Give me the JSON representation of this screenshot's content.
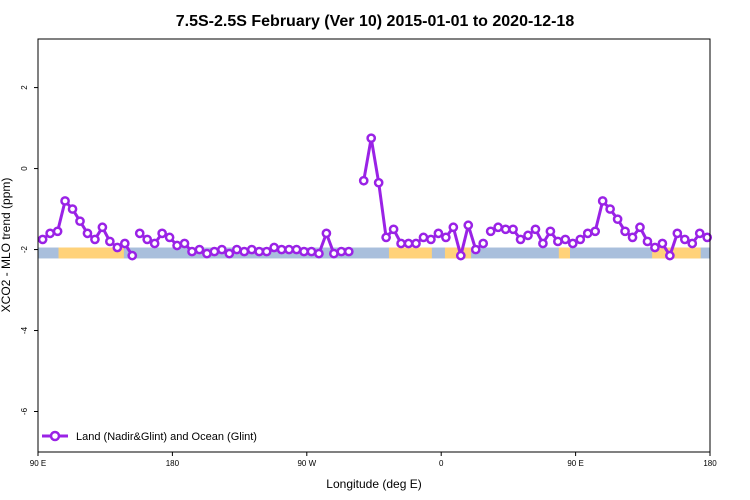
{
  "chart_data": {
    "type": "line",
    "title": "7.5S-2.5S February (Ver 10)   2015-01-01 to 2020-12-18",
    "xlabel": "Longitude (deg E)",
    "ylabel": "XCO2 - MLO trend (ppm)",
    "xlim": [
      90,
      450
    ],
    "ylim": [
      -7,
      3.2
    ],
    "x_ticks": [
      90,
      162,
      234,
      306,
      378,
      450
    ],
    "x_tick_labels": [
      "90 E",
      "180",
      "90 W",
      "0",
      "90 E",
      "180"
    ],
    "y_ticks": [
      -6,
      -4,
      -2,
      0,
      2
    ],
    "y_tick_labels": [
      "-6",
      "-4",
      "-2",
      "0",
      "2"
    ],
    "grid": false,
    "legend_position": "bottom-left",
    "colors": {
      "series": "#9a22e6",
      "land": "#ffd27a",
      "ocean": "#a9bfdc"
    },
    "surface_strip": {
      "y_range": [
        -2.22,
        -1.95
      ],
      "land_segments": [
        [
          101,
          136
        ],
        [
          278,
          301
        ],
        [
          308,
          322
        ],
        [
          369,
          375
        ],
        [
          419,
          445
        ]
      ]
    },
    "series": [
      {
        "name": "Land (Nadir&Glint) and Ocean (Glint)",
        "segments": [
          {
            "x": [
              92.5,
              96.5,
              100.5,
              104.5,
              108.5,
              112.5,
              116.5,
              120.5,
              124.5,
              128.5,
              132.5,
              136.5,
              140.5
            ],
            "y": [
              -1.75,
              -1.6,
              -1.55,
              -0.8,
              -1.0,
              -1.3,
              -1.6,
              -1.75,
              -1.45,
              -1.8,
              -1.95,
              -1.85,
              -2.15
            ]
          },
          {
            "x": [
              144.5,
              148.5,
              152.5,
              156.5,
              160.5,
              164.5,
              168.5,
              172.5,
              176.5,
              180.5,
              184.5,
              188.5,
              192.5,
              196.5,
              200.5,
              204.5,
              208.5,
              212.5,
              216.5,
              220.5,
              224.5,
              228.5,
              232.5,
              236.5,
              240.5,
              244.5,
              248.5,
              252.5,
              256.5
            ],
            "y": [
              -1.6,
              -1.75,
              -1.85,
              -1.6,
              -1.7,
              -1.9,
              -1.85,
              -2.05,
              -2.0,
              -2.1,
              -2.05,
              -2.0,
              -2.1,
              -2.0,
              -2.05,
              -2.0,
              -2.05,
              -2.05,
              -1.95,
              -2.0,
              -2.0,
              -2.0,
              -2.05,
              -2.05,
              -2.1,
              -1.6,
              -2.1,
              -2.05,
              -2.05
            ]
          },
          {
            "x": [
              264.5,
              268.5,
              272.5,
              276.5,
              280.5,
              284.5,
              288.5,
              292.5,
              296.5,
              300.5,
              304.5,
              308.5,
              312.5,
              316.5,
              320.5,
              324.5,
              328.5
            ],
            "y": [
              -0.3,
              0.75,
              -0.35,
              -1.7,
              -1.5,
              -1.85,
              -1.85,
              -1.85,
              -1.7,
              -1.75,
              -1.6,
              -1.7,
              -1.45,
              -2.15,
              -1.4,
              -2.0,
              -1.85
            ]
          },
          {
            "x": [
              332.5,
              336.5,
              340.5,
              344.5,
              348.5,
              352.5,
              356.5,
              360.5,
              364.5,
              368.5,
              372.5,
              376.5,
              380.5,
              384.5,
              388.5,
              392.5,
              396.5,
              400.5,
              404.5,
              408.5,
              412.5,
              416.5,
              420.5,
              424.5,
              428.5,
              432.5,
              436.5,
              440.5,
              444.5,
              448.5
            ],
            "y": [
              -1.55,
              -1.45,
              -1.5,
              -1.5,
              -1.75,
              -1.65,
              -1.5,
              -1.85,
              -1.55,
              -1.8,
              -1.75,
              -1.85,
              -1.75,
              -1.6,
              -1.55,
              -0.8,
              -1.0,
              -1.25,
              -1.55,
              -1.7,
              -1.45,
              -1.8,
              -1.95,
              -1.85,
              -2.15,
              -1.6,
              -1.75,
              -1.85,
              -1.6,
              -1.7
            ]
          }
        ]
      }
    ]
  }
}
